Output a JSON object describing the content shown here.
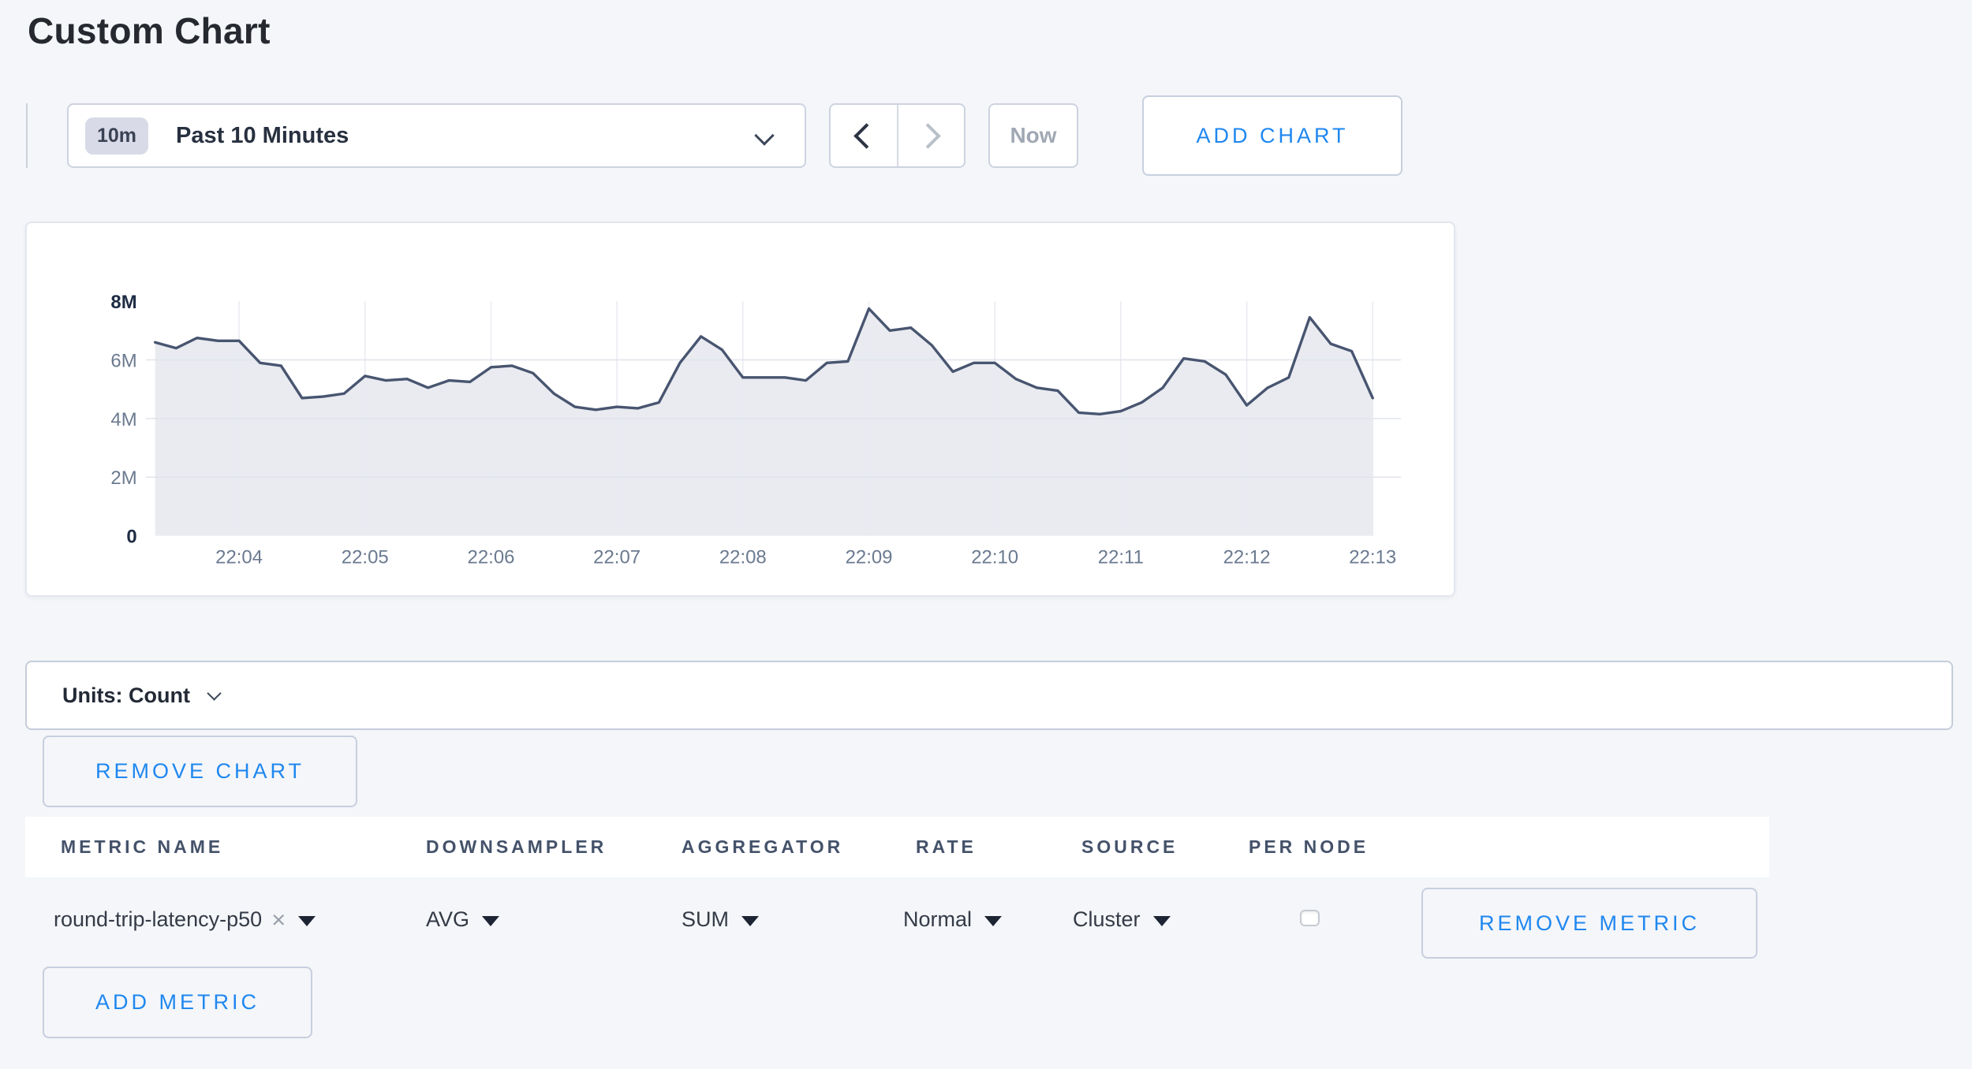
{
  "page": {
    "title": "Custom Chart"
  },
  "colors": {
    "accent_blue": "#1f87f0",
    "page_background": "#f4f6f9"
  },
  "toolbar": {
    "time_badge": "10m",
    "time_range": "Past 10 Minutes",
    "now_label": "Now",
    "add_chart_label": "ADD CHART"
  },
  "units_bar": {
    "label": "Units: Count"
  },
  "remove_chart_label": "REMOVE CHART",
  "chart_data": {
    "type": "area",
    "title": "",
    "unit": "Count",
    "x_start_time": "22:03:20",
    "x_end_time": "22:13:00",
    "point_interval_seconds": 10,
    "x_tick_labels": [
      "22:04",
      "22:05",
      "22:06",
      "22:07",
      "22:08",
      "22:09",
      "22:10",
      "22:11",
      "22:12",
      "22:13"
    ],
    "y_tick_labels": [
      "0",
      "2M",
      "4M",
      "6M",
      "8M"
    ],
    "y_tick_values_millions": [
      0,
      2,
      4,
      6,
      8
    ],
    "ylim_millions": [
      0,
      8
    ],
    "grid": true,
    "legend": "none",
    "line_color": "#485570",
    "fill_color": "#e9ebf0",
    "values_millions": [
      6.6,
      6.4,
      6.75,
      6.65,
      6.65,
      5.9,
      5.8,
      4.7,
      4.75,
      4.85,
      5.45,
      5.3,
      5.35,
      5.05,
      5.3,
      5.25,
      5.75,
      5.8,
      5.55,
      4.85,
      4.4,
      4.3,
      4.4,
      4.35,
      4.55,
      5.9,
      6.8,
      6.35,
      5.4,
      5.4,
      5.4,
      5.3,
      5.9,
      5.95,
      7.75,
      7.0,
      7.1,
      6.5,
      5.6,
      5.9,
      5.9,
      5.35,
      5.05,
      4.95,
      4.2,
      4.15,
      4.25,
      4.55,
      5.05,
      6.05,
      5.95,
      5.5,
      4.45,
      5.05,
      5.4,
      7.45,
      6.55,
      6.3,
      4.7
    ]
  },
  "metrics_table": {
    "headers": [
      "METRIC NAME",
      "DOWNSAMPLER",
      "AGGREGATOR",
      "RATE",
      "SOURCE",
      "PER NODE"
    ],
    "rows": [
      {
        "metric_name": "round-trip-latency-p50",
        "remove_tag_icon": "×",
        "downsampler": "AVG",
        "aggregator": "SUM",
        "rate": "Normal",
        "source": "Cluster",
        "per_node_checked": false,
        "remove_metric_label": "REMOVE METRIC"
      }
    ],
    "add_metric_label": "ADD METRIC"
  }
}
